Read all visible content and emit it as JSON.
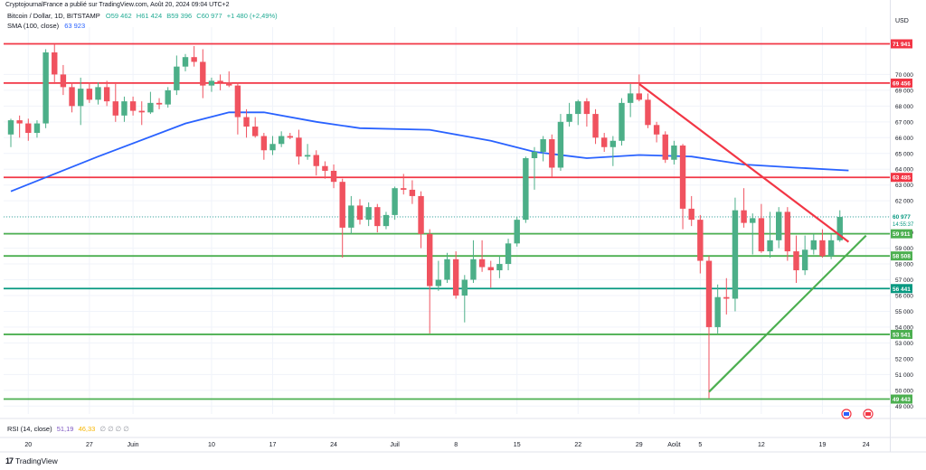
{
  "header": {
    "publisher_line": "CryptojournalFrance a publié sur TradingView.com, Août 20, 2024 09:04 UTC+2",
    "symbol": "Bitcoin / Dollar, 1D, BITSTAMP",
    "ohlc": {
      "open": "O59 462",
      "high": "H61 424",
      "low": "B59 396",
      "close": "C60 977",
      "change": "+1 480 (+2,49%)"
    },
    "sma_label": "SMA (100, close)",
    "sma_value": "63 923",
    "currency": "USD"
  },
  "rsi": {
    "label": "RSI (14, close)",
    "value": "51,19",
    "ma": "46,33",
    "extra": "∅ ∅ ∅ ∅"
  },
  "brand": {
    "logo": "17",
    "name": "TradingView"
  },
  "chart_data": {
    "type": "candlestick",
    "y_axis": {
      "min": 48500,
      "max": 73000,
      "ticks": [
        49000,
        50000,
        51000,
        52000,
        53000,
        54000,
        55000,
        56000,
        57000,
        58000,
        59000,
        60000,
        61000,
        62000,
        63000,
        64000,
        65000,
        66000,
        67000,
        68000,
        69000,
        70000
      ],
      "tick_labels": [
        "49 000",
        "50 000",
        "51 000",
        "52 000",
        "53 000",
        "54 000",
        "55 000",
        "56 000",
        "57 000",
        "58 000",
        "59 000",
        "60 000",
        "61 000",
        "62 000",
        "63 000",
        "64 000",
        "65 000",
        "66 000",
        "67 000",
        "68 000",
        "69 000",
        "70 000"
      ]
    },
    "x_axis": {
      "labels": [
        {
          "text": "20",
          "i": 2
        },
        {
          "text": "27",
          "i": 9
        },
        {
          "text": "Juin",
          "i": 14
        },
        {
          "text": "10",
          "i": 23
        },
        {
          "text": "17",
          "i": 30
        },
        {
          "text": "24",
          "i": 37
        },
        {
          "text": "Juil",
          "i": 44
        },
        {
          "text": "8",
          "i": 51
        },
        {
          "text": "15",
          "i": 58
        },
        {
          "text": "22",
          "i": 65
        },
        {
          "text": "29",
          "i": 72
        },
        {
          "text": "Août",
          "i": 76
        },
        {
          "text": "5",
          "i": 79
        },
        {
          "text": "12",
          "i": 86
        },
        {
          "text": "19",
          "i": 93
        },
        {
          "text": "24",
          "i": 98
        }
      ]
    },
    "candles": [
      {
        "o": 66200,
        "h": 67200,
        "l": 65400,
        "c": 67100
      },
      {
        "o": 67100,
        "h": 67400,
        "l": 66000,
        "c": 66900
      },
      {
        "o": 66900,
        "h": 67200,
        "l": 65800,
        "c": 66300
      },
      {
        "o": 66300,
        "h": 67100,
        "l": 66000,
        "c": 66900
      },
      {
        "o": 66900,
        "h": 71600,
        "l": 66600,
        "c": 71400
      },
      {
        "o": 71400,
        "h": 71900,
        "l": 69400,
        "c": 70000
      },
      {
        "o": 70000,
        "h": 70600,
        "l": 68700,
        "c": 69200
      },
      {
        "o": 69200,
        "h": 69500,
        "l": 67600,
        "c": 68000
      },
      {
        "o": 68000,
        "h": 69800,
        "l": 66800,
        "c": 69100
      },
      {
        "o": 69100,
        "h": 69500,
        "l": 68200,
        "c": 68400
      },
      {
        "o": 68400,
        "h": 69500,
        "l": 68100,
        "c": 69200
      },
      {
        "o": 69200,
        "h": 69600,
        "l": 68000,
        "c": 68300
      },
      {
        "o": 68300,
        "h": 69400,
        "l": 67000,
        "c": 67400
      },
      {
        "o": 67400,
        "h": 68600,
        "l": 67000,
        "c": 68300
      },
      {
        "o": 68300,
        "h": 68600,
        "l": 67400,
        "c": 67700
      },
      {
        "o": 67700,
        "h": 68300,
        "l": 66800,
        "c": 67600
      },
      {
        "o": 67600,
        "h": 68900,
        "l": 67500,
        "c": 68200
      },
      {
        "o": 68200,
        "h": 68500,
        "l": 67800,
        "c": 68100
      },
      {
        "o": 68100,
        "h": 69200,
        "l": 67900,
        "c": 69000
      },
      {
        "o": 69000,
        "h": 71200,
        "l": 68700,
        "c": 70500
      },
      {
        "o": 70500,
        "h": 71300,
        "l": 70200,
        "c": 71100
      },
      {
        "o": 71100,
        "h": 71800,
        "l": 70500,
        "c": 70800
      },
      {
        "o": 70800,
        "h": 71600,
        "l": 68500,
        "c": 69300
      },
      {
        "o": 69300,
        "h": 69800,
        "l": 68900,
        "c": 69600
      },
      {
        "o": 69600,
        "h": 70000,
        "l": 69000,
        "c": 69500
      },
      {
        "o": 69500,
        "h": 70200,
        "l": 69200,
        "c": 69300
      },
      {
        "o": 69300,
        "h": 69500,
        "l": 66200,
        "c": 67300
      },
      {
        "o": 67300,
        "h": 67800,
        "l": 66000,
        "c": 66700
      },
      {
        "o": 66700,
        "h": 67300,
        "l": 66000,
        "c": 66100
      },
      {
        "o": 66100,
        "h": 66300,
        "l": 64600,
        "c": 65200
      },
      {
        "o": 65200,
        "h": 66100,
        "l": 64900,
        "c": 65600
      },
      {
        "o": 65600,
        "h": 66400,
        "l": 65400,
        "c": 66100
      },
      {
        "o": 66100,
        "h": 66300,
        "l": 65900,
        "c": 66000
      },
      {
        "o": 66000,
        "h": 66500,
        "l": 64300,
        "c": 64800
      },
      {
        "o": 64800,
        "h": 65600,
        "l": 64600,
        "c": 64900
      },
      {
        "o": 64900,
        "h": 65200,
        "l": 63600,
        "c": 64200
      },
      {
        "o": 64200,
        "h": 64500,
        "l": 63400,
        "c": 63900
      },
      {
        "o": 63900,
        "h": 64300,
        "l": 62800,
        "c": 63200
      },
      {
        "o": 63200,
        "h": 63400,
        "l": 58400,
        "c": 60300
      },
      {
        "o": 60300,
        "h": 62300,
        "l": 59900,
        "c": 61700
      },
      {
        "o": 61700,
        "h": 62100,
        "l": 60500,
        "c": 60800
      },
      {
        "o": 60800,
        "h": 61900,
        "l": 60400,
        "c": 61600
      },
      {
        "o": 61600,
        "h": 61800,
        "l": 60000,
        "c": 60400
      },
      {
        "o": 60400,
        "h": 61300,
        "l": 60200,
        "c": 61100
      },
      {
        "o": 61100,
        "h": 62900,
        "l": 60800,
        "c": 62800
      },
      {
        "o": 62800,
        "h": 63700,
        "l": 62400,
        "c": 62700
      },
      {
        "o": 62700,
        "h": 63300,
        "l": 61800,
        "c": 62300
      },
      {
        "o": 62300,
        "h": 62600,
        "l": 59000,
        "c": 59900
      },
      {
        "o": 59900,
        "h": 60200,
        "l": 53600,
        "c": 56600
      },
      {
        "o": 56600,
        "h": 58200,
        "l": 56300,
        "c": 57000
      },
      {
        "o": 57000,
        "h": 58700,
        "l": 56800,
        "c": 58300
      },
      {
        "o": 58300,
        "h": 58800,
        "l": 55800,
        "c": 56000
      },
      {
        "o": 56000,
        "h": 57300,
        "l": 54300,
        "c": 57000
      },
      {
        "o": 57000,
        "h": 59500,
        "l": 56800,
        "c": 58300
      },
      {
        "o": 58300,
        "h": 59500,
        "l": 57500,
        "c": 57800
      },
      {
        "o": 57800,
        "h": 58200,
        "l": 56500,
        "c": 57600
      },
      {
        "o": 57600,
        "h": 58500,
        "l": 57100,
        "c": 58000
      },
      {
        "o": 58000,
        "h": 59600,
        "l": 57600,
        "c": 59300
      },
      {
        "o": 59300,
        "h": 61000,
        "l": 59100,
        "c": 60800
      },
      {
        "o": 60800,
        "h": 64800,
        "l": 60600,
        "c": 64700
      },
      {
        "o": 64700,
        "h": 65400,
        "l": 62700,
        "c": 65100
      },
      {
        "o": 65100,
        "h": 66100,
        "l": 64500,
        "c": 65900
      },
      {
        "o": 65900,
        "h": 66200,
        "l": 63500,
        "c": 64100
      },
      {
        "o": 64100,
        "h": 67500,
        "l": 63900,
        "c": 67000
      },
      {
        "o": 67000,
        "h": 68200,
        "l": 66700,
        "c": 67500
      },
      {
        "o": 67500,
        "h": 68400,
        "l": 66800,
        "c": 68300
      },
      {
        "o": 68300,
        "h": 68500,
        "l": 66700,
        "c": 67500
      },
      {
        "o": 67500,
        "h": 67800,
        "l": 65600,
        "c": 66000
      },
      {
        "o": 66000,
        "h": 66300,
        "l": 65100,
        "c": 65400
      },
      {
        "o": 65400,
        "h": 66100,
        "l": 64200,
        "c": 65800
      },
      {
        "o": 65800,
        "h": 68500,
        "l": 65500,
        "c": 68200
      },
      {
        "o": 68200,
        "h": 69400,
        "l": 67300,
        "c": 68800
      },
      {
        "o": 68800,
        "h": 70000,
        "l": 68300,
        "c": 68400
      },
      {
        "o": 68400,
        "h": 68800,
        "l": 66600,
        "c": 66800
      },
      {
        "o": 66800,
        "h": 67000,
        "l": 65700,
        "c": 66200
      },
      {
        "o": 66200,
        "h": 66400,
        "l": 64400,
        "c": 64600
      },
      {
        "o": 64600,
        "h": 65800,
        "l": 64300,
        "c": 65500
      },
      {
        "o": 65500,
        "h": 65600,
        "l": 60200,
        "c": 61500
      },
      {
        "o": 61500,
        "h": 62300,
        "l": 60400,
        "c": 60800
      },
      {
        "o": 60800,
        "h": 61100,
        "l": 57400,
        "c": 58200
      },
      {
        "o": 58200,
        "h": 58500,
        "l": 49500,
        "c": 54000
      },
      {
        "o": 54000,
        "h": 56700,
        "l": 53600,
        "c": 55900
      },
      {
        "o": 55900,
        "h": 57100,
        "l": 54800,
        "c": 55800
      },
      {
        "o": 55800,
        "h": 62200,
        "l": 55000,
        "c": 61400
      },
      {
        "o": 61400,
        "h": 62800,
        "l": 60300,
        "c": 60600
      },
      {
        "o": 60600,
        "h": 61200,
        "l": 58600,
        "c": 60900
      },
      {
        "o": 60900,
        "h": 61800,
        "l": 58700,
        "c": 58800
      },
      {
        "o": 58800,
        "h": 61300,
        "l": 58400,
        "c": 59500
      },
      {
        "o": 59500,
        "h": 61600,
        "l": 59000,
        "c": 61300
      },
      {
        "o": 61300,
        "h": 61600,
        "l": 58200,
        "c": 58800
      },
      {
        "o": 58800,
        "h": 59800,
        "l": 56800,
        "c": 57600
      },
      {
        "o": 57600,
        "h": 59800,
        "l": 57300,
        "c": 58900
      },
      {
        "o": 58900,
        "h": 59900,
        "l": 58600,
        "c": 59500
      },
      {
        "o": 59500,
        "h": 60200,
        "l": 58400,
        "c": 58500
      },
      {
        "o": 58500,
        "h": 59900,
        "l": 58300,
        "c": 59500
      },
      {
        "o": 59500,
        "h": 61400,
        "l": 59400,
        "c": 60977
      }
    ],
    "horizontal_levels": [
      {
        "value": 71941,
        "label": "71 941",
        "color": "#f23645"
      },
      {
        "value": 69456,
        "label": "69 456",
        "color": "#f23645"
      },
      {
        "value": 63485,
        "label": "63 485",
        "color": "#f23645"
      },
      {
        "value": 59911,
        "label": "59 911",
        "color": "#4caf50"
      },
      {
        "value": 58508,
        "label": "58 508",
        "color": "#4caf50"
      },
      {
        "value": 56441,
        "label": "56 441",
        "color": "#089981"
      },
      {
        "value": 53541,
        "label": "53 541",
        "color": "#4caf50"
      },
      {
        "value": 49443,
        "label": "49 443",
        "color": "#4caf50"
      }
    ],
    "current_price": {
      "value": 60977,
      "label": "60 977",
      "countdown": "14:55:37",
      "color": "#089981"
    },
    "trendlines": [
      {
        "from": {
          "i": 72,
          "v": 69400
        },
        "to": {
          "i": 96,
          "v": 59400
        },
        "color": "#f23645"
      },
      {
        "from": {
          "i": 80,
          "v": 49900
        },
        "to": {
          "i": 98,
          "v": 59800
        },
        "color": "#4caf50"
      }
    ],
    "sma_100": [
      {
        "i": 0,
        "v": 62600
      },
      {
        "i": 10,
        "v": 64800
      },
      {
        "i": 20,
        "v": 66900
      },
      {
        "i": 25,
        "v": 67600
      },
      {
        "i": 29,
        "v": 67600
      },
      {
        "i": 35,
        "v": 67000
      },
      {
        "i": 40,
        "v": 66600
      },
      {
        "i": 48,
        "v": 66500
      },
      {
        "i": 55,
        "v": 65800
      },
      {
        "i": 60,
        "v": 65100
      },
      {
        "i": 66,
        "v": 64700
      },
      {
        "i": 72,
        "v": 64900
      },
      {
        "i": 78,
        "v": 64800
      },
      {
        "i": 84,
        "v": 64300
      },
      {
        "i": 90,
        "v": 64100
      },
      {
        "i": 96,
        "v": 63923
      }
    ],
    "colors": {
      "up": "#4caf88",
      "down": "#f0525f",
      "sma": "#2962ff",
      "grid": "#f0f3fa"
    },
    "grid": true,
    "icons": [
      "flag-icon",
      "flag-icon"
    ]
  }
}
